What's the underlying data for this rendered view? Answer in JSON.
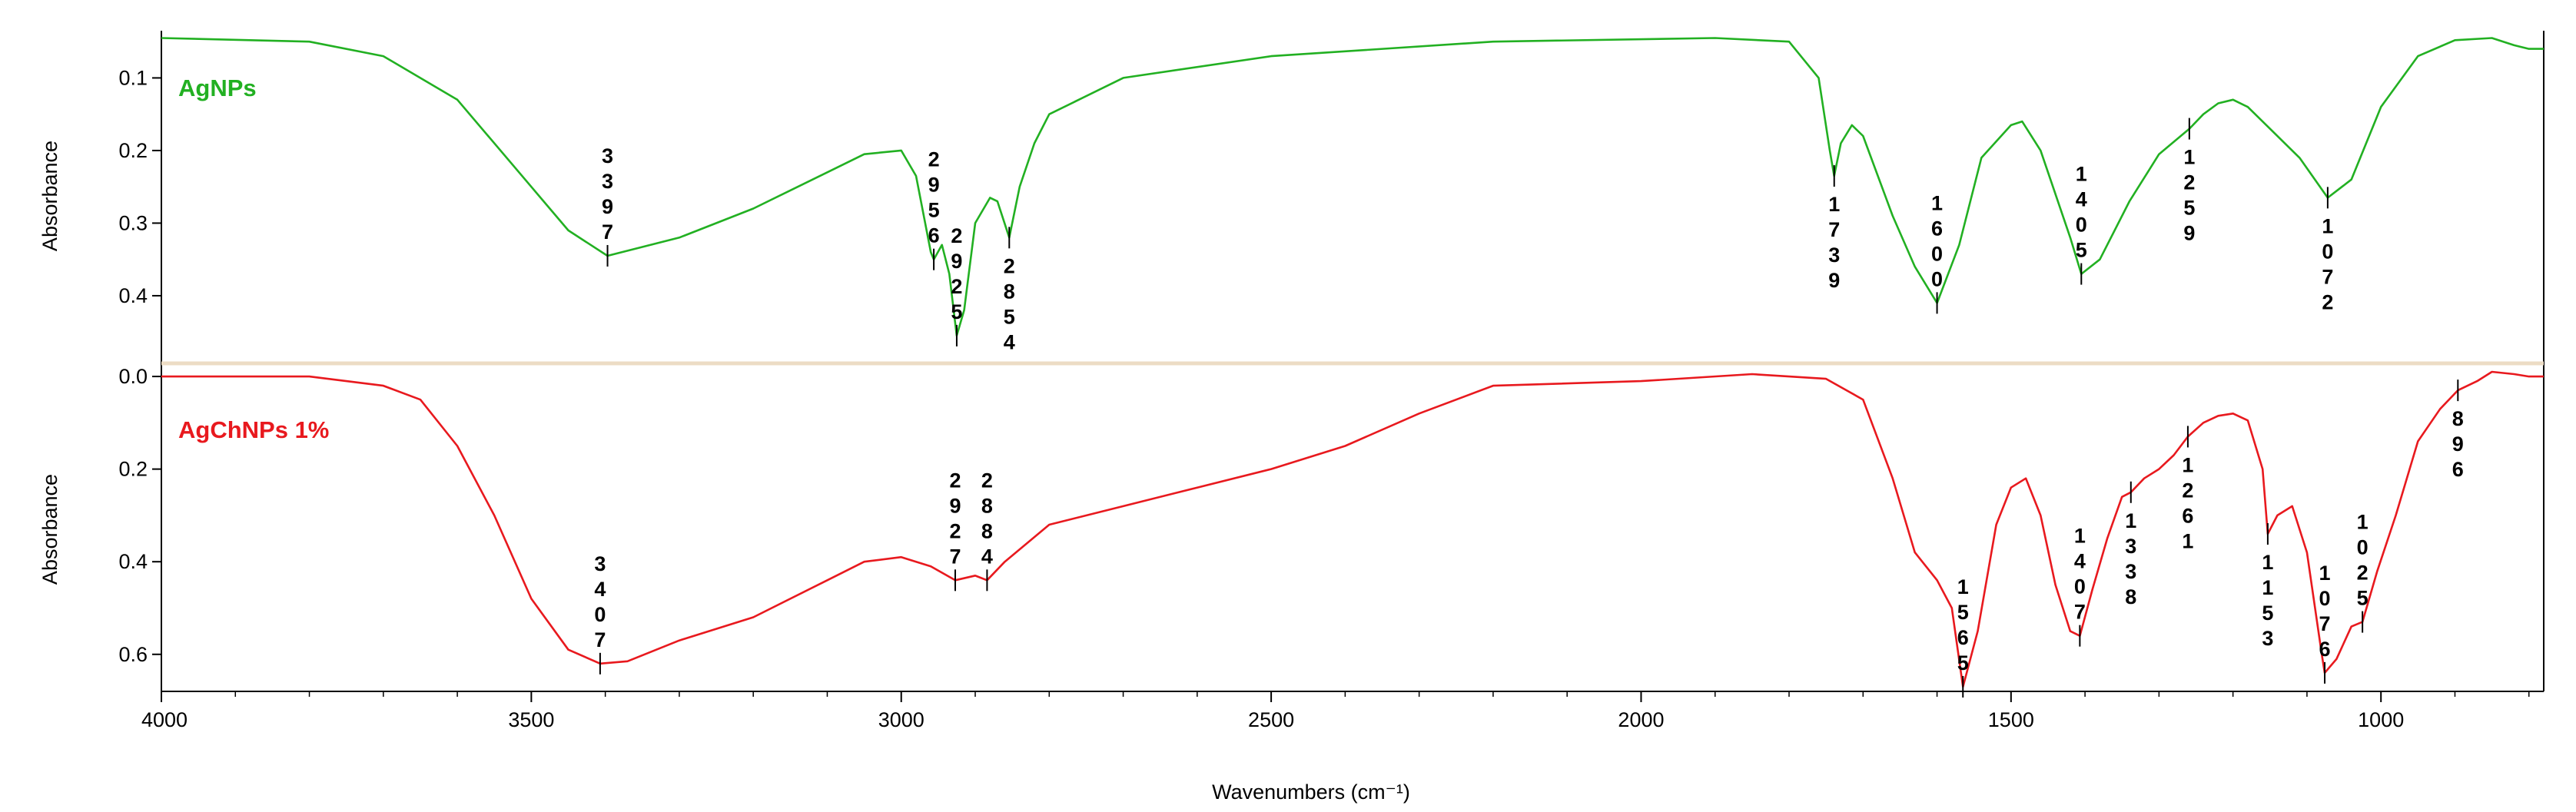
{
  "chart_data": {
    "type": "line",
    "xlabel": "Wavenumbers (cm⁻¹)",
    "x_reversed": true,
    "xlim": [
      4000,
      780
    ],
    "xticks": [
      "4000",
      "3500",
      "3000",
      "2500",
      "2000",
      "1500",
      "1000"
    ],
    "colors": {
      "top": "#22b022",
      "bottom": "#e8191e",
      "divider": "#ecdcc4"
    },
    "panels": [
      {
        "name": "top",
        "ylabel": "Absorbance",
        "ylim": [
          0.035,
          0.49
        ],
        "yticks": [
          "0.1",
          "0.2",
          "0.3",
          "0.4"
        ],
        "series": {
          "name": "AgNPs",
          "x": [
            4000,
            3800,
            3700,
            3600,
            3500,
            3450,
            3397,
            3300,
            3200,
            3100,
            3050,
            3000,
            2980,
            2960,
            2956,
            2945,
            2935,
            2925,
            2915,
            2900,
            2880,
            2870,
            2854,
            2840,
            2820,
            2800,
            2700,
            2500,
            2200,
            1900,
            1800,
            1760,
            1745,
            1739,
            1730,
            1715,
            1700,
            1660,
            1630,
            1600,
            1570,
            1540,
            1500,
            1485,
            1460,
            1440,
            1420,
            1405,
            1380,
            1340,
            1300,
            1259,
            1240,
            1220,
            1200,
            1180,
            1150,
            1110,
            1072,
            1040,
            1000,
            950,
            900,
            850,
            820,
            800,
            780
          ],
          "values": [
            0.045,
            0.05,
            0.07,
            0.13,
            0.25,
            0.31,
            0.345,
            0.32,
            0.28,
            0.23,
            0.205,
            0.2,
            0.235,
            0.34,
            0.35,
            0.33,
            0.37,
            0.455,
            0.42,
            0.3,
            0.265,
            0.27,
            0.32,
            0.25,
            0.19,
            0.15,
            0.1,
            0.07,
            0.05,
            0.045,
            0.05,
            0.1,
            0.2,
            0.235,
            0.19,
            0.165,
            0.18,
            0.29,
            0.36,
            0.41,
            0.33,
            0.21,
            0.165,
            0.16,
            0.2,
            0.26,
            0.32,
            0.37,
            0.35,
            0.27,
            0.205,
            0.17,
            0.15,
            0.135,
            0.13,
            0.14,
            0.17,
            0.21,
            0.265,
            0.24,
            0.14,
            0.07,
            0.048,
            0.045,
            0.055,
            0.06,
            0.06
          ]
        },
        "peaks": [
          {
            "label": "3397",
            "x": 3397,
            "y": 0.345,
            "side": "above"
          },
          {
            "label": "2956",
            "x": 2956,
            "y": 0.35,
            "side": "above"
          },
          {
            "label": "2925",
            "x": 2925,
            "y": 0.455,
            "side": "above"
          },
          {
            "label": "2854",
            "x": 2854,
            "y": 0.32,
            "side": "below"
          },
          {
            "label": "1739",
            "x": 1739,
            "y": 0.235,
            "side": "below"
          },
          {
            "label": "1600",
            "x": 1600,
            "y": 0.41,
            "side": "above"
          },
          {
            "label": "1405",
            "x": 1405,
            "y": 0.37,
            "side": "above"
          },
          {
            "label": "1259",
            "x": 1259,
            "y": 0.17,
            "side": "below"
          },
          {
            "label": "1072",
            "x": 1072,
            "y": 0.265,
            "side": "below"
          }
        ]
      },
      {
        "name": "bottom",
        "ylabel": "Absorbance",
        "ylim": [
          -0.02,
          0.68
        ],
        "yticks": [
          "0.0",
          "0.2",
          "0.4",
          "0.6"
        ],
        "series": {
          "name": "AgChNPs 1%",
          "x": [
            4000,
            3800,
            3700,
            3650,
            3600,
            3550,
            3500,
            3450,
            3407,
            3370,
            3300,
            3200,
            3100,
            3050,
            3000,
            2960,
            2927,
            2900,
            2884,
            2860,
            2800,
            2700,
            2600,
            2500,
            2400,
            2300,
            2200,
            2000,
            1850,
            1750,
            1700,
            1660,
            1630,
            1600,
            1580,
            1565,
            1545,
            1520,
            1500,
            1480,
            1460,
            1440,
            1420,
            1407,
            1390,
            1370,
            1350,
            1338,
            1320,
            1300,
            1280,
            1261,
            1240,
            1220,
            1200,
            1180,
            1160,
            1153,
            1140,
            1120,
            1100,
            1080,
            1076,
            1060,
            1040,
            1025,
            1005,
            980,
            950,
            920,
            896,
            870,
            850,
            820,
            800,
            780
          ],
          "values": [
            0.0,
            0.0,
            0.02,
            0.05,
            0.15,
            0.3,
            0.48,
            0.59,
            0.62,
            0.615,
            0.57,
            0.52,
            0.44,
            0.4,
            0.39,
            0.41,
            0.44,
            0.43,
            0.44,
            0.4,
            0.32,
            0.28,
            0.24,
            0.2,
            0.15,
            0.08,
            0.02,
            0.01,
            -0.005,
            0.005,
            0.05,
            0.22,
            0.38,
            0.44,
            0.5,
            0.67,
            0.55,
            0.32,
            0.24,
            0.22,
            0.3,
            0.45,
            0.55,
            0.56,
            0.46,
            0.35,
            0.26,
            0.25,
            0.22,
            0.2,
            0.17,
            0.13,
            0.1,
            0.085,
            0.08,
            0.095,
            0.2,
            0.34,
            0.3,
            0.28,
            0.38,
            0.6,
            0.64,
            0.61,
            0.54,
            0.53,
            0.42,
            0.3,
            0.14,
            0.07,
            0.03,
            0.01,
            -0.01,
            -0.005,
            0.0,
            0.0
          ]
        },
        "peaks": [
          {
            "label": "3407",
            "x": 3407,
            "y": 0.62,
            "side": "above"
          },
          {
            "label": "2927",
            "x": 2927,
            "y": 0.44,
            "side": "above"
          },
          {
            "label": "2884",
            "x": 2884,
            "y": 0.44,
            "side": "above"
          },
          {
            "label": "1565",
            "x": 1565,
            "y": 0.67,
            "side": "above"
          },
          {
            "label": "1407",
            "x": 1407,
            "y": 0.56,
            "side": "above"
          },
          {
            "label": "1338",
            "x": 1338,
            "y": 0.25,
            "side": "below"
          },
          {
            "label": "1261",
            "x": 1261,
            "y": 0.13,
            "side": "below"
          },
          {
            "label": "1153",
            "x": 1153,
            "y": 0.34,
            "side": "below"
          },
          {
            "label": "1076",
            "x": 1076,
            "y": 0.64,
            "side": "above"
          },
          {
            "label": "1025",
            "x": 1025,
            "y": 0.53,
            "side": "above"
          },
          {
            "label": "896",
            "x": 896,
            "y": 0.03,
            "side": "below"
          }
        ]
      }
    ]
  }
}
